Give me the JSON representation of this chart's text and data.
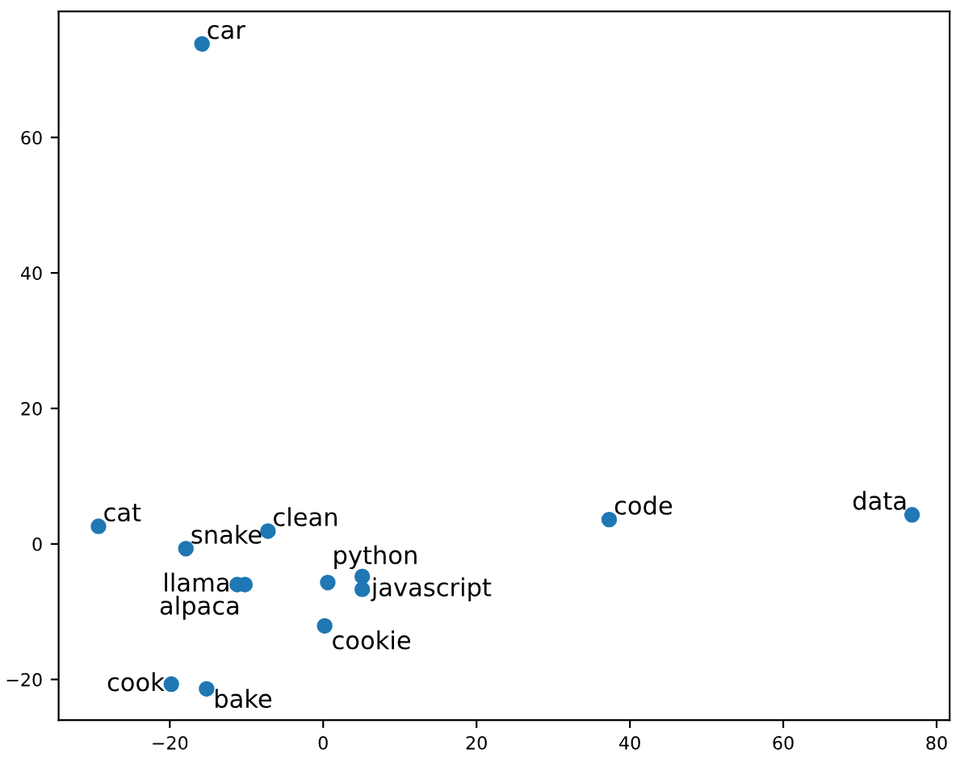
{
  "chart_data": {
    "type": "scatter",
    "marker": "circle",
    "grid": false,
    "x": [
      -15.8,
      -29.3,
      -17.9,
      -7.2,
      -11.2,
      -10.2,
      0.6,
      5.1,
      5.1,
      0.2,
      -19.8,
      -15.2,
      37.3,
      76.8
    ],
    "series": [
      {
        "color": "#1f77b4",
        "values": [
          73.8,
          2.6,
          -0.7,
          1.9,
          -6.0,
          -6.0,
          -5.7,
          -4.8,
          -6.7,
          -12.1,
          -20.7,
          -21.4,
          3.6,
          4.3
        ]
      }
    ],
    "annotations": [
      {
        "text": "car",
        "x": -15.8,
        "y": 73.8
      },
      {
        "text": "cat",
        "x": -29.3,
        "y": 2.6
      },
      {
        "text": "snake",
        "x": -17.9,
        "y": -0.7
      },
      {
        "text": "clean",
        "x": -7.2,
        "y": 1.9
      },
      {
        "text": "llama",
        "x": -11.2,
        "y": -6.0
      },
      {
        "text": "alpaca",
        "x": -10.2,
        "y": -6.0
      },
      {
        "text": "python",
        "x": 0.6,
        "y": -5.7
      },
      {
        "text": "javascript",
        "x": 5.1,
        "y": -6.7
      },
      {
        "text": "cookie",
        "x": 0.2,
        "y": -12.1
      },
      {
        "text": "cook",
        "x": -19.8,
        "y": -20.7
      },
      {
        "text": "bake",
        "x": -15.2,
        "y": -21.4
      },
      {
        "text": "code",
        "x": 37.3,
        "y": 3.6
      },
      {
        "text": "data",
        "x": 76.8,
        "y": 4.3
      }
    ],
    "xlim": [
      -34.5,
      81.7
    ],
    "ylim": [
      -26,
      78.6
    ],
    "xticks": [
      {
        "value": -20,
        "label": "−20"
      },
      0,
      20,
      40,
      60,
      80
    ],
    "yticks": [
      {
        "value": -20,
        "label": "−20"
      },
      0,
      20,
      40,
      60
    ]
  }
}
